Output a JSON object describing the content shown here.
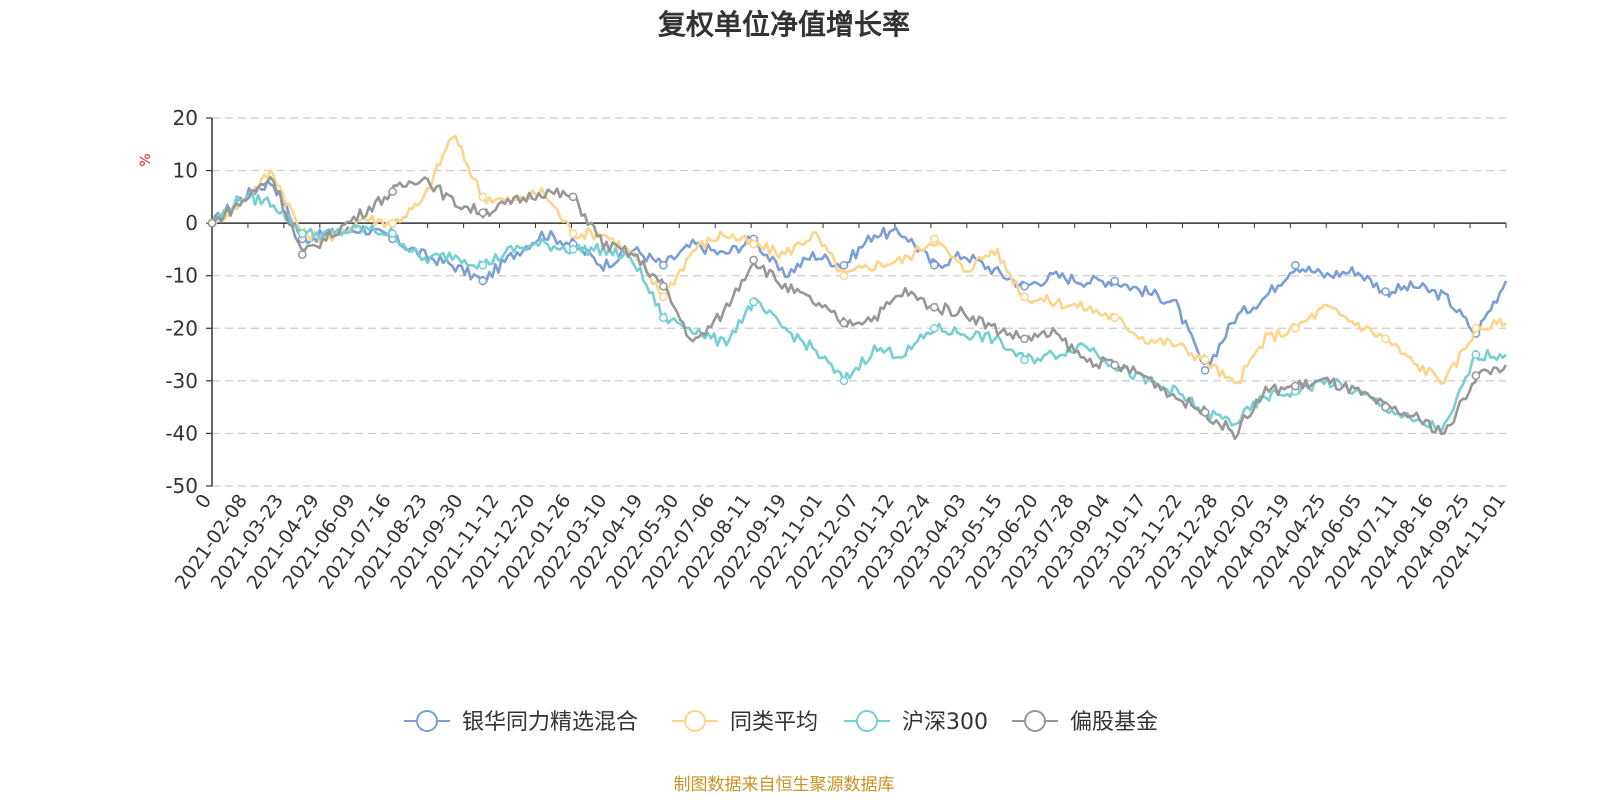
{
  "chart_data": {
    "type": "line",
    "title": "复权单位净值增长率",
    "ylabel": "%",
    "ylim": [
      -50,
      20
    ],
    "yticks": [
      20,
      10,
      0,
      -10,
      -20,
      -30,
      -40,
      -50
    ],
    "grid": true,
    "legend_position": "bottom",
    "x_tick_labels": [
      "0",
      "2021-02-08",
      "2021-03-23",
      "2021-04-29",
      "2021-06-09",
      "2021-07-16",
      "2021-08-23",
      "2021-09-30",
      "2021-11-12",
      "2021-12-20",
      "2022-01-26",
      "2022-03-10",
      "2022-04-19",
      "2022-05-30",
      "2022-07-06",
      "2022-08-11",
      "2022-09-19",
      "2022-11-01",
      "2022-12-07",
      "2023-01-12",
      "2023-02-24",
      "2023-04-03",
      "2023-05-15",
      "2023-06-20",
      "2023-07-28",
      "2023-09-04",
      "2023-10-17",
      "2023-11-22",
      "2023-12-28",
      "2024-02-02",
      "2024-03-19",
      "2024-04-25",
      "2024-06-05",
      "2024-07-11",
      "2024-08-16",
      "2024-09-25",
      "2024-11-01"
    ],
    "series": [
      {
        "name": "银华同力精选混合",
        "color": "#7b9ed6",
        "values": [
          0,
          5,
          8,
          -3,
          -2,
          -1,
          -3,
          -6,
          -8,
          -11,
          -6,
          -2,
          -4,
          -8,
          -5,
          -8,
          -4,
          -6,
          -3,
          -10,
          -6,
          -8,
          -2,
          -2,
          -8,
          -6,
          -9,
          -12,
          -10,
          -11,
          -11,
          -13,
          -15,
          -28,
          -18,
          -14,
          -8,
          -10,
          -9,
          -13,
          -12,
          -14,
          -21,
          -11
        ]
      },
      {
        "name": "同类平均",
        "color": "#fdd58a",
        "values": [
          0,
          4,
          10,
          -2,
          -3,
          1,
          0,
          4,
          17,
          5,
          4,
          6,
          -2,
          -2,
          -6,
          -14,
          -5,
          -2,
          -4,
          -6,
          -2,
          -10,
          -8,
          -7,
          -3,
          -9,
          -5,
          -14,
          -15,
          -16,
          -18,
          -22,
          -23,
          -26,
          -31,
          -22,
          -20,
          -16,
          -19,
          -22,
          -27,
          -30,
          -20,
          -19
        ]
      },
      {
        "name": "沪深300",
        "color": "#76d0d1",
        "values": [
          0,
          5,
          4,
          -2,
          -2,
          -1,
          -2,
          -7,
          -6,
          -8,
          -5,
          -4,
          -5,
          -5,
          -7,
          -18,
          -20,
          -23,
          -15,
          -20,
          -24,
          -30,
          -24,
          -25,
          -20,
          -21,
          -22,
          -26,
          -25,
          -23,
          -27,
          -30,
          -32,
          -36,
          -38,
          -33,
          -32,
          -30,
          -32,
          -35,
          -38,
          -39,
          -25,
          -25
        ]
      },
      {
        "name": "偏股基金",
        "color": "#979797",
        "values": [
          0,
          4,
          9,
          -6,
          -2,
          2,
          6,
          9,
          4,
          2,
          4,
          6,
          5,
          -4,
          -6,
          -12,
          -23,
          -17,
          -7,
          -12,
          -15,
          -19,
          -18,
          -13,
          -16,
          -17,
          -20,
          -22,
          -21,
          -26,
          -27,
          -29,
          -33,
          -36,
          -40,
          -32,
          -31,
          -30,
          -32,
          -35,
          -37,
          -40,
          -29,
          -27
        ]
      }
    ]
  },
  "source_note": "制图数据来自恒生聚源数据库"
}
